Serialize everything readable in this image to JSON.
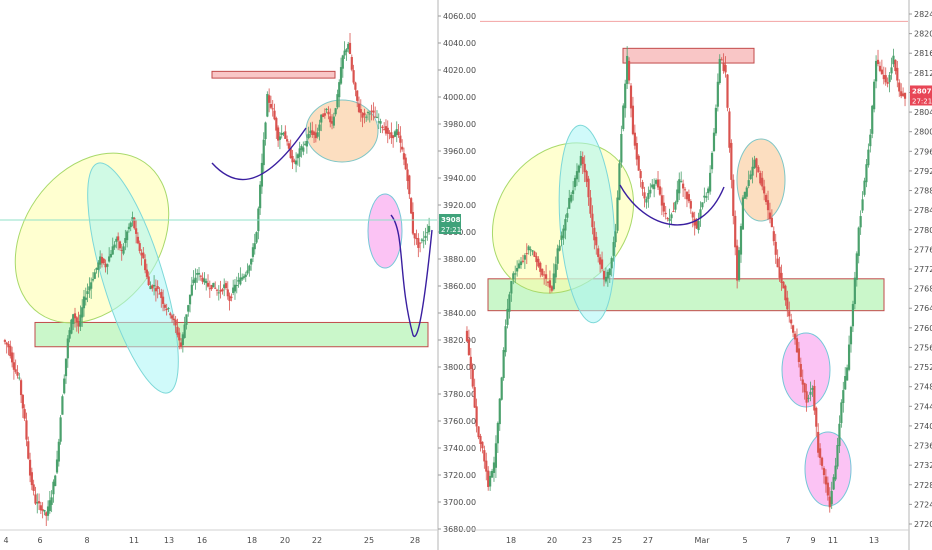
{
  "chart_data": [
    {
      "type": "candlestick",
      "y_ticks": [
        "4060.00",
        "4040.00",
        "4020.00",
        "4000.00",
        "3980.00",
        "3960.00",
        "3940.00",
        "3920.00",
        "3900.00",
        "3880.00",
        "3860.00",
        "3840.00",
        "3820.00",
        "3800.00",
        "3780.00",
        "3760.00",
        "3740.00",
        "3720.00",
        "3700.00",
        "3680.00"
      ],
      "ylim": [
        3680,
        4060
      ],
      "x_ticks": [
        "4",
        "6",
        "8",
        "11",
        "13",
        "16",
        "18",
        "20",
        "22",
        "25",
        "28"
      ],
      "price_label": "3908.89",
      "time_label": "27:21",
      "horizontal_line": 3908.89,
      "support_zone": [
        3815,
        3833
      ],
      "resistance_zone": [
        4014,
        4019
      ],
      "price_path": [
        3820,
        3815,
        3800,
        3790,
        3760,
        3720,
        3700,
        3696,
        3690,
        3705,
        3730,
        3780,
        3820,
        3840,
        3830,
        3850,
        3860,
        3870,
        3880,
        3875,
        3885,
        3895,
        3885,
        3900,
        3910,
        3890,
        3880,
        3860,
        3860,
        3855,
        3845,
        3840,
        3830,
        3815,
        3840,
        3860,
        3870,
        3865,
        3860,
        3860,
        3855,
        3860,
        3850,
        3860,
        3865,
        3870,
        3880,
        3900,
        3950,
        4000,
        3990,
        3970,
        3975,
        3960,
        3950,
        3960,
        3965,
        3975,
        3970,
        3985,
        3990,
        3980,
        4000,
        4030,
        4040,
        4010,
        3990,
        3985,
        3990,
        3985,
        3980,
        3975,
        3970,
        3975,
        3960,
        3940,
        3900,
        3890,
        3895,
        3905
      ]
    },
    {
      "type": "candlestick",
      "y_ticks": [
        "2824.0",
        "2820.0",
        "2816.0",
        "2812.0",
        "2808.0",
        "2804.0",
        "2800.0",
        "2796.0",
        "2792.0",
        "2788.0",
        "2784.0",
        "2780.0",
        "2776.0",
        "2772.0",
        "2768.0",
        "2764.0",
        "2760.0",
        "2756.0",
        "2752.0",
        "2748.0",
        "2744.0",
        "2740.0",
        "2736.0",
        "2732.0",
        "2728.0",
        "2724.0",
        "2720.0"
      ],
      "ylim": [
        2720,
        2824
      ],
      "x_ticks": [
        "18",
        "20",
        "23",
        "25",
        "27",
        "Mar",
        "5",
        "7",
        "9",
        "11",
        "13"
      ],
      "price_label": "2807.1",
      "time_label": "27:21",
      "horizontal_line": 2822.5,
      "support_zone": [
        2763.5,
        2770
      ],
      "resistance_zone": [
        2814,
        2817
      ],
      "price_path": [
        2760,
        2752,
        2740,
        2735,
        2728,
        2732,
        2745,
        2760,
        2770,
        2772,
        2774,
        2776,
        2775,
        2772,
        2770,
        2768,
        2776,
        2780,
        2786,
        2790,
        2795,
        2790,
        2780,
        2775,
        2770,
        2772,
        2780,
        2800,
        2815,
        2800,
        2792,
        2786,
        2788,
        2790,
        2785,
        2782,
        2784,
        2790,
        2788,
        2784,
        2780,
        2786,
        2788,
        2800,
        2815,
        2812,
        2790,
        2770,
        2786,
        2790,
        2794,
        2790,
        2786,
        2780,
        2772,
        2768,
        2762,
        2758,
        2750,
        2745,
        2748,
        2735,
        2730,
        2724,
        2732,
        2745,
        2752,
        2765,
        2780,
        2790,
        2800,
        2815,
        2812,
        2810,
        2815,
        2808,
        2807
      ]
    }
  ]
}
